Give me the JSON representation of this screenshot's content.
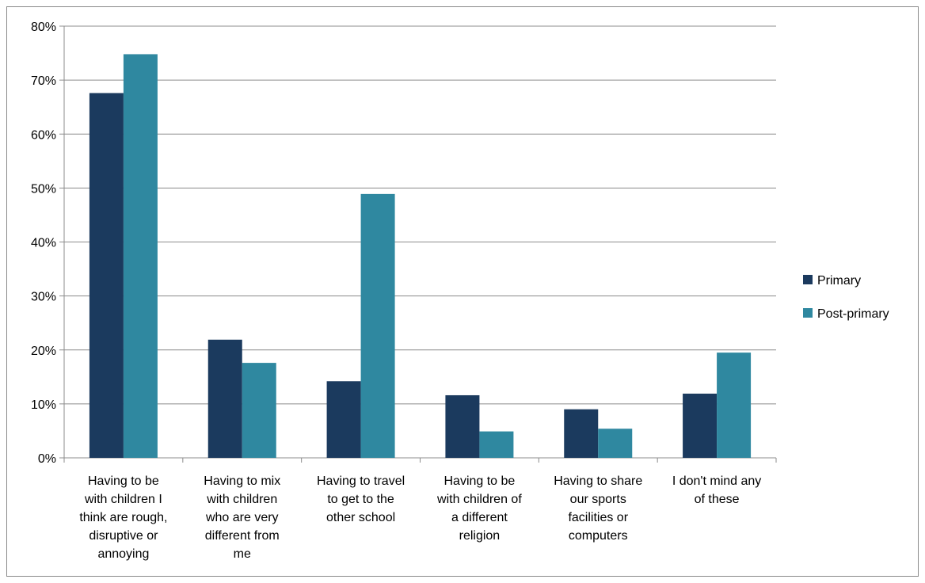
{
  "chart_data": {
    "type": "bar",
    "title": "",
    "xlabel": "",
    "ylabel": "",
    "ylim": [
      0,
      80
    ],
    "yticks": [
      "0%",
      "10%",
      "20%",
      "30%",
      "40%",
      "50%",
      "60%",
      "70%",
      "80%"
    ],
    "grid": true,
    "legend_position": "right",
    "categories": [
      [
        "Having to be",
        "with children I",
        "think are rough,",
        "disruptive or",
        "annoying"
      ],
      [
        "Having to mix",
        "with children",
        "who are very",
        "different from",
        "me"
      ],
      [
        "Having to travel",
        "to get to the",
        "other school"
      ],
      [
        "Having to be",
        "with children of",
        "a different",
        "religion"
      ],
      [
        "Having to share",
        "our sports",
        "facilities or",
        "computers"
      ],
      [
        "I don't mind any",
        "of these"
      ]
    ],
    "series": [
      {
        "name": "Primary",
        "color": "#1b3a5e",
        "values": [
          67.6,
          21.9,
          14.2,
          11.6,
          9.0,
          11.9
        ]
      },
      {
        "name": "Post-primary",
        "color": "#2f88a0",
        "values": [
          74.8,
          17.6,
          48.9,
          4.9,
          5.4,
          19.5
        ]
      }
    ]
  }
}
